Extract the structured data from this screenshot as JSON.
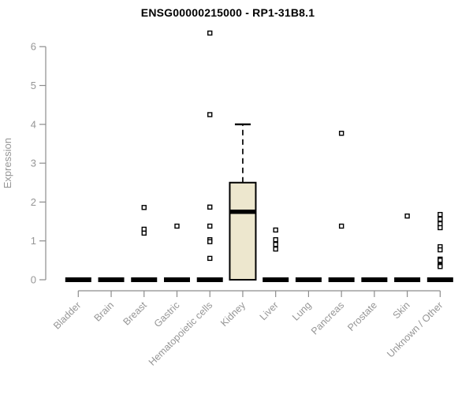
{
  "page": {
    "background": "#ffffff"
  },
  "chart_data": {
    "type": "boxplot",
    "title": "ENSG00000215000 - RP1-31B8.1",
    "xlabel": "",
    "ylabel": "Expression",
    "ylim": [
      0,
      6
    ],
    "yticks": [
      0,
      1,
      2,
      3,
      4,
      5,
      6
    ],
    "grid": false,
    "legend": "none",
    "categories": [
      "Bladder",
      "Brain",
      "Breast",
      "Gastric",
      "Hematopoietic cells",
      "Kidney",
      "Liver",
      "Lung",
      "Pancreas",
      "Prostate",
      "Skin",
      "Unknown / Other"
    ],
    "boxes": [
      {
        "category": "Bladder",
        "q1": 0,
        "median": 0,
        "q3": 0,
        "whisker_low": 0,
        "whisker_high": 0,
        "outliers": []
      },
      {
        "category": "Brain",
        "q1": 0,
        "median": 0,
        "q3": 0,
        "whisker_low": 0,
        "whisker_high": 0,
        "outliers": []
      },
      {
        "category": "Breast",
        "q1": 0,
        "median": 0,
        "q3": 0,
        "whisker_low": 0,
        "whisker_high": 0,
        "outliers": [
          1.86,
          1.3,
          1.2
        ]
      },
      {
        "category": "Gastric",
        "q1": 0,
        "median": 0,
        "q3": 0,
        "whisker_low": 0,
        "whisker_high": 0,
        "outliers": [
          1.38
        ]
      },
      {
        "category": "Hematopoietic cells",
        "q1": 0,
        "median": 0,
        "q3": 0,
        "whisker_low": 0,
        "whisker_high": 0,
        "outliers": [
          6.35,
          4.25,
          1.87,
          1.38,
          1.03,
          0.98,
          0.55
        ]
      },
      {
        "category": "Kidney",
        "q1": 0,
        "median": 1.75,
        "q3": 2.5,
        "whisker_low": 0,
        "whisker_high": 4.0,
        "outliers": []
      },
      {
        "category": "Liver",
        "q1": 0,
        "median": 0,
        "q3": 0,
        "whisker_low": 0,
        "whisker_high": 0,
        "outliers": [
          1.28,
          1.03,
          0.91,
          0.79
        ]
      },
      {
        "category": "Lung",
        "q1": 0,
        "median": 0,
        "q3": 0,
        "whisker_low": 0,
        "whisker_high": 0,
        "outliers": []
      },
      {
        "category": "Pancreas",
        "q1": 0,
        "median": 0,
        "q3": 0,
        "whisker_low": 0,
        "whisker_high": 0,
        "outliers": [
          3.77,
          1.38
        ]
      },
      {
        "category": "Prostate",
        "q1": 0,
        "median": 0,
        "q3": 0,
        "whisker_low": 0,
        "whisker_high": 0,
        "outliers": []
      },
      {
        "category": "Skin",
        "q1": 0,
        "median": 0,
        "q3": 0,
        "whisker_low": 0,
        "whisker_high": 0,
        "outliers": [
          1.64
        ]
      },
      {
        "category": "Unknown / Other",
        "q1": 0,
        "median": 0,
        "q3": 0,
        "whisker_low": 0,
        "whisker_high": 0,
        "outliers": [
          1.68,
          1.56,
          1.44,
          1.34,
          0.85,
          0.77,
          0.53,
          0.5,
          0.37,
          0.34
        ]
      }
    ],
    "colors": {
      "box_fill": "#EDE7CE",
      "box_border": "#000000",
      "median": "#000000",
      "outlier_fill": "#ffffff",
      "axis": "#8c8c8c",
      "tick_label": "#969696",
      "title": "#000000",
      "background": "#ffffff"
    }
  }
}
